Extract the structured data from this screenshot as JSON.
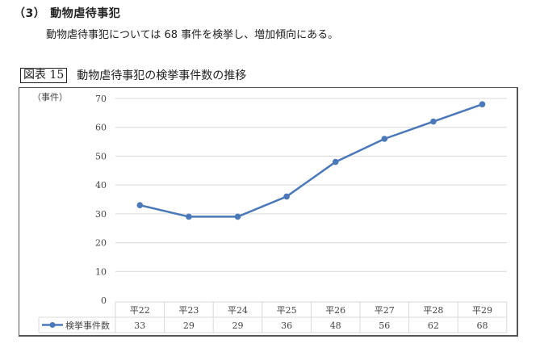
{
  "section": {
    "number": "（3）",
    "title": "動物虐待事犯",
    "description": "動物虐待事犯については 68 事件を検挙し、増加傾向にある。"
  },
  "figure": {
    "label": "図表 15",
    "title": "動物虐待事犯の検挙事件数の推移"
  },
  "chart_data": {
    "type": "line",
    "title": "動物虐待事犯の検挙事件数の推移",
    "xlabel": "",
    "ylabel": "（事件）",
    "categories": [
      "平22",
      "平23",
      "平24",
      "平25",
      "平26",
      "平27",
      "平28",
      "平29"
    ],
    "series": [
      {
        "name": "検挙事件数",
        "values": [
          33,
          29,
          29,
          36,
          48,
          56,
          62,
          68
        ],
        "color": "#4a78b8"
      }
    ],
    "ylim": [
      0,
      70
    ],
    "yticks": [
      0,
      10,
      20,
      30,
      40,
      50,
      60,
      70
    ],
    "grid": true,
    "legend_position": "data-table",
    "data_table": true
  }
}
